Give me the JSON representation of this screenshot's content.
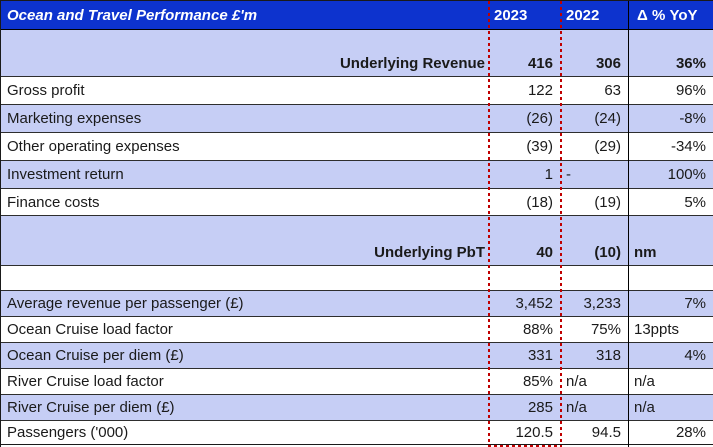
{
  "title": "Ocean and Travel Performance £'m",
  "columns": {
    "label": "",
    "y2023": "2023",
    "y2022": "2022",
    "yoy": "Δ % YoY"
  },
  "colors": {
    "header_bg": "#0D33CE",
    "header_text": "#FFFFFF",
    "band_bg": "#C6CEF5",
    "grid_line": "#2E2E2E",
    "page_break_line": "#C00000",
    "body_text": "#1A1A1A"
  },
  "rows": [
    {
      "label": "Underlying Revenue",
      "y2023": "416",
      "y2022": "306",
      "yoy": "36%"
    },
    {
      "label": "Gross profit",
      "y2023": "122",
      "y2022": "63",
      "yoy": "96%"
    },
    {
      "label": "Marketing expenses",
      "y2023": "(26)",
      "y2022": "(24)",
      "yoy": "-8%"
    },
    {
      "label": "Other operating expenses",
      "y2023": "(39)",
      "y2022": "(29)",
      "yoy": "-34%"
    },
    {
      "label": "Investment return",
      "y2023": "1",
      "y2022": "-",
      "yoy": "100%"
    },
    {
      "label": "Finance costs",
      "y2023": "(18)",
      "y2022": "(19)",
      "yoy": "5%"
    },
    {
      "label": "Underlying PbT",
      "y2023": "40",
      "y2022": "(10)",
      "yoy": "nm"
    },
    {
      "label": "",
      "y2023": "",
      "y2022": "",
      "yoy": ""
    },
    {
      "label": "Average revenue per passenger (£)",
      "y2023": "3,452",
      "y2022": "3,233",
      "yoy": "7%"
    },
    {
      "label": "Ocean Cruise load factor",
      "y2023": "88%",
      "y2022": "75%",
      "yoy": "13ppts"
    },
    {
      "label": "Ocean Cruise per diem (£)",
      "y2023": "331",
      "y2022": "318",
      "yoy": "4%"
    },
    {
      "label": "River Cruise load factor",
      "y2023": "85%",
      "y2022": "n/a",
      "yoy": "n/a"
    },
    {
      "label": "River Cruise per diem (£)",
      "y2023": "285",
      "y2022": "n/a",
      "yoy": "n/a"
    },
    {
      "label": "Passengers ('000)",
      "y2023": "120.5",
      "y2022": "94.5",
      "yoy": "28%"
    }
  ],
  "chart_data": {
    "type": "table",
    "title": "Ocean and Travel Performance £'m",
    "columns": [
      "2023",
      "2022",
      "Δ % YoY"
    ],
    "rows": [
      [
        "Underlying Revenue",
        "416",
        "306",
        "36%"
      ],
      [
        "Gross profit",
        "122",
        "63",
        "96%"
      ],
      [
        "Marketing expenses",
        "(26)",
        "(24)",
        "-8%"
      ],
      [
        "Other operating expenses",
        "(39)",
        "(29)",
        "-34%"
      ],
      [
        "Investment return",
        "1",
        "-",
        "100%"
      ],
      [
        "Finance costs",
        "(18)",
        "(19)",
        "5%"
      ],
      [
        "Underlying PbT",
        "40",
        "(10)",
        "nm"
      ],
      [
        "Average revenue per passenger (£)",
        "3,452",
        "3,233",
        "7%"
      ],
      [
        "Ocean Cruise load factor",
        "88%",
        "75%",
        "13ppts"
      ],
      [
        "Ocean Cruise per diem (£)",
        "331",
        "318",
        "4%"
      ],
      [
        "River Cruise load factor",
        "85%",
        "n/a",
        "n/a"
      ],
      [
        "River Cruise per diem (£)",
        "285",
        "n/a",
        "n/a"
      ],
      [
        "Passengers ('000)",
        "120.5",
        "94.5",
        "28%"
      ]
    ]
  }
}
